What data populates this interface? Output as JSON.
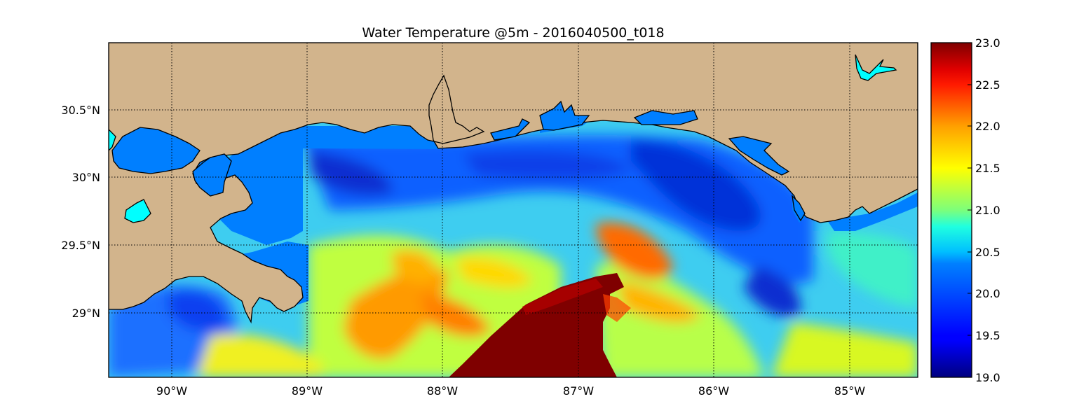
{
  "title": "Water Temperature @5m - 2016040500_t018",
  "map": {
    "lon_range": [
      -90.5,
      -84.5
    ],
    "lat_range": [
      28.55,
      30.98
    ],
    "lon_ticks": [
      {
        "value": -90,
        "label": "90°W"
      },
      {
        "value": -89,
        "label": "89°W"
      },
      {
        "value": -88,
        "label": "88°W"
      },
      {
        "value": -87,
        "label": "87°W"
      },
      {
        "value": -86,
        "label": "86°W"
      },
      {
        "value": -85,
        "label": "85°W"
      }
    ],
    "lat_ticks": [
      {
        "value": 30.5,
        "label": "30.5°N"
      },
      {
        "value": 30.0,
        "label": "30°N"
      },
      {
        "value": 29.5,
        "label": "29.5°N"
      },
      {
        "value": 29.0,
        "label": "29°N"
      }
    ],
    "grid": true,
    "land_color": "#d2b48c",
    "mask_color": "#007fff"
  },
  "colorbar": {
    "colormap": "jet",
    "range": [
      19.0,
      23.0
    ],
    "tick_labels": [
      "23.0",
      "22.5",
      "22.0",
      "21.5",
      "21.0",
      "20.5",
      "20.0",
      "19.5",
      "19.0"
    ]
  }
}
